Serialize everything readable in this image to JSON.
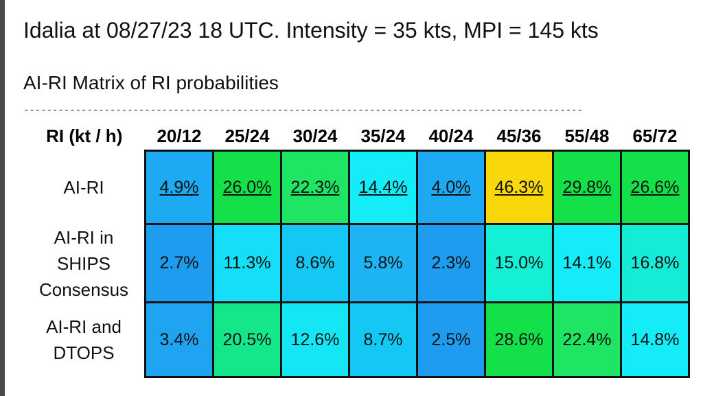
{
  "header": {
    "title": "Idalia at 08/27/23 18 UTC. Intensity = 35 kts, MPI = 145 kts",
    "subtitle": "AI-RI Matrix of RI probabilities",
    "divider": "-------------------------------------------------------------------------------------------------"
  },
  "matrix": {
    "corner_label": "RI (kt / h)",
    "columns": [
      "20/12",
      "25/24",
      "30/24",
      "35/24",
      "40/24",
      "45/36",
      "55/48",
      "65/72"
    ],
    "rows": [
      {
        "label": "AI-RI",
        "values": [
          "4.9%",
          "26.0%",
          "22.3%",
          "14.4%",
          "4.0%",
          "46.3%",
          "29.8%",
          "26.6%"
        ],
        "colors": [
          "#1eaaf3",
          "#14e04a",
          "#1ee564",
          "#14ecf8",
          "#1eaaf3",
          "#f8d80a",
          "#14e04a",
          "#14e04a"
        ],
        "linked": true
      },
      {
        "label": "AI-RI in SHIPS Consensus",
        "values": [
          "2.7%",
          "11.3%",
          "8.6%",
          "5.8%",
          "2.3%",
          "15.0%",
          "14.1%",
          "16.8%"
        ],
        "colors": [
          "#1e9cf0",
          "#14def8",
          "#14c8f6",
          "#1eb4f3",
          "#1e9cf0",
          "#14f0d6",
          "#14ecf8",
          "#14ecd8"
        ],
        "linked": false
      },
      {
        "label": "AI-RI and DTOPS",
        "values": [
          "3.4%",
          "20.5%",
          "12.6%",
          "8.7%",
          "2.5%",
          "28.6%",
          "22.4%",
          "14.8%"
        ],
        "colors": [
          "#1ea4f1",
          "#14e68a",
          "#14e6f6",
          "#14c8f6",
          "#1e9cf0",
          "#14e04a",
          "#1ee564",
          "#14ecf8"
        ],
        "linked": false
      }
    ]
  }
}
